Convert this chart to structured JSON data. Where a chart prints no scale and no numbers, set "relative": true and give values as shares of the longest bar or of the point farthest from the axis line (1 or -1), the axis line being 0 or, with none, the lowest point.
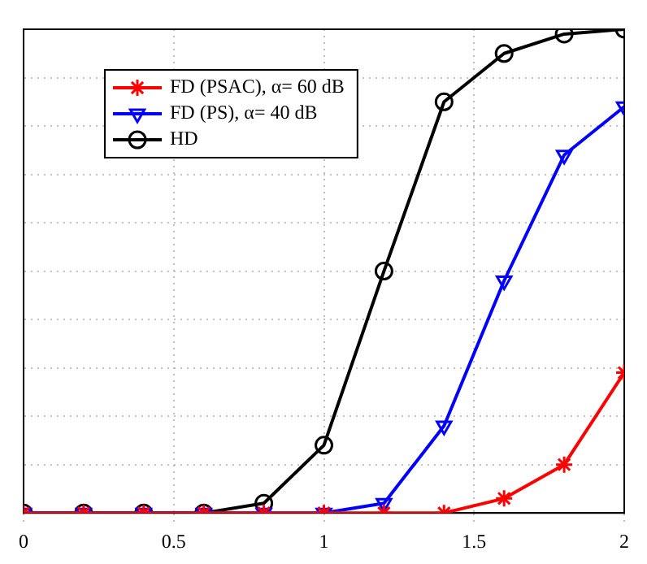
{
  "chart_data": {
    "type": "line",
    "relative": true,
    "x": [
      0,
      0.2,
      0.4,
      0.6,
      0.8,
      1,
      1.2,
      1.4,
      1.6,
      1.8,
      2
    ],
    "xlim": [
      0,
      2
    ],
    "xticks": [
      0,
      0.5,
      1,
      1.5,
      2
    ],
    "grid": true,
    "legend": "top left",
    "series": [
      {
        "name": "FD (PSAC), α= 60 dB",
        "color": "#ff0000",
        "marker": "cross",
        "values": [
          0,
          0,
          0,
          0,
          0,
          0,
          0,
          0,
          0.03,
          0.1,
          0.29
        ]
      },
      {
        "name": "FD (PS), α= 40 dB",
        "color": "#0000ff",
        "marker": "triangle",
        "values": [
          0,
          0,
          0,
          0,
          0,
          0,
          0.02,
          0.18,
          0.48,
          0.74,
          0.84
        ]
      },
      {
        "name": "HD",
        "color": "#000000",
        "marker": "circle",
        "values": [
          0,
          0,
          0,
          0,
          0.02,
          0.14,
          0.5,
          0.85,
          0.95,
          0.99,
          1
        ]
      }
    ]
  }
}
